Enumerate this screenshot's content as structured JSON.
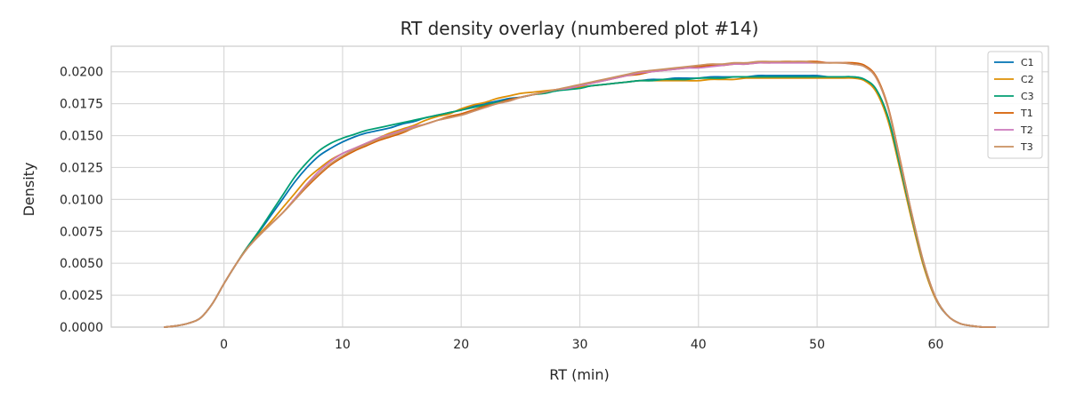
{
  "chart_data": {
    "type": "line",
    "title": "RT density overlay (numbered plot #14)",
    "xlabel": "RT (min)",
    "ylabel": "Density",
    "xlim": [
      -9.5,
      69.5
    ],
    "ylim": [
      0,
      0.022
    ],
    "xticks": [
      0,
      10,
      20,
      30,
      40,
      50,
      60
    ],
    "xtick_labels": [
      "0",
      "10",
      "20",
      "30",
      "40",
      "50",
      "60"
    ],
    "yticks": [
      0,
      0.0025,
      0.005,
      0.0075,
      0.01,
      0.0125,
      0.015,
      0.0175,
      0.02
    ],
    "ytick_labels": [
      "0.0000",
      "0.0025",
      "0.0050",
      "0.0075",
      "0.0100",
      "0.0125",
      "0.0150",
      "0.0175",
      "0.0200"
    ],
    "grid": true,
    "legend_position": "top-right",
    "x": [
      -5,
      -4,
      -3,
      -2,
      -1,
      0,
      1,
      2,
      3,
      4,
      5,
      6,
      7,
      8,
      9,
      10,
      11,
      12,
      13,
      14,
      15,
      16,
      17,
      18,
      19,
      20,
      21,
      22,
      23,
      24,
      25,
      26,
      27,
      28,
      29,
      30,
      31,
      32,
      33,
      34,
      35,
      36,
      37,
      38,
      39,
      40,
      41,
      42,
      43,
      44,
      45,
      46,
      47,
      48,
      49,
      50,
      51,
      52,
      53,
      54,
      55,
      56,
      57,
      58,
      59,
      60,
      61,
      62,
      63,
      64,
      65
    ],
    "series": [
      {
        "name": "C1",
        "color": "#0173b2",
        "values": [
          0.0,
          0.0001,
          0.0003,
          0.0007,
          0.0018,
          0.0034,
          0.0049,
          0.0063,
          0.0075,
          0.0088,
          0.0101,
          0.0114,
          0.0125,
          0.0134,
          0.014,
          0.0145,
          0.0149,
          0.0152,
          0.0154,
          0.0156,
          0.0159,
          0.0161,
          0.0164,
          0.0166,
          0.0168,
          0.017,
          0.0173,
          0.0175,
          0.0177,
          0.0179,
          0.018,
          0.0182,
          0.0184,
          0.0185,
          0.0187,
          0.0188,
          0.0189,
          0.019,
          0.0191,
          0.0192,
          0.0193,
          0.0194,
          0.0194,
          0.0195,
          0.0195,
          0.0195,
          0.0196,
          0.0196,
          0.0196,
          0.0196,
          0.0197,
          0.0197,
          0.0197,
          0.0197,
          0.0197,
          0.0197,
          0.0196,
          0.0196,
          0.0196,
          0.0194,
          0.0185,
          0.0163,
          0.0125,
          0.0085,
          0.0048,
          0.0022,
          0.0009,
          0.0003,
          0.0001,
          0.0,
          0.0
        ]
      },
      {
        "name": "C2",
        "color": "#de8f05",
        "values": [
          0.0,
          0.0001,
          0.0003,
          0.0007,
          0.0018,
          0.0034,
          0.0049,
          0.0063,
          0.0073,
          0.0083,
          0.0094,
          0.0105,
          0.0116,
          0.0124,
          0.0131,
          0.0136,
          0.014,
          0.0144,
          0.0148,
          0.0152,
          0.0155,
          0.0158,
          0.0162,
          0.0165,
          0.0167,
          0.0171,
          0.0174,
          0.0176,
          0.0179,
          0.0181,
          0.0183,
          0.0184,
          0.0185,
          0.0186,
          0.0187,
          0.0188,
          0.0189,
          0.019,
          0.0191,
          0.0192,
          0.0193,
          0.0193,
          0.0193,
          0.0193,
          0.0193,
          0.0193,
          0.0194,
          0.0194,
          0.0194,
          0.0195,
          0.0195,
          0.0195,
          0.0195,
          0.0195,
          0.0195,
          0.0195,
          0.0195,
          0.0195,
          0.0195,
          0.0193,
          0.0184,
          0.0161,
          0.0123,
          0.0083,
          0.0047,
          0.0022,
          0.0009,
          0.0003,
          0.0001,
          0.0,
          0.0
        ]
      },
      {
        "name": "C3",
        "color": "#029e73",
        "values": [
          0.0,
          0.0001,
          0.0003,
          0.0007,
          0.0018,
          0.0034,
          0.0049,
          0.0063,
          0.0076,
          0.009,
          0.0104,
          0.0118,
          0.0129,
          0.0138,
          0.0144,
          0.0148,
          0.0151,
          0.0154,
          0.0156,
          0.0158,
          0.016,
          0.0162,
          0.0164,
          0.0166,
          0.0168,
          0.017,
          0.0172,
          0.0174,
          0.0176,
          0.0178,
          0.018,
          0.0182,
          0.0183,
          0.0185,
          0.0186,
          0.0187,
          0.0189,
          0.019,
          0.0191,
          0.0192,
          0.0193,
          0.0193,
          0.0194,
          0.0194,
          0.0194,
          0.0195,
          0.0195,
          0.0195,
          0.0196,
          0.0196,
          0.0196,
          0.0196,
          0.0196,
          0.0196,
          0.0196,
          0.0196,
          0.0196,
          0.0196,
          0.0196,
          0.0194,
          0.0186,
          0.0164,
          0.0126,
          0.0086,
          0.0049,
          0.0023,
          0.0009,
          0.0003,
          0.0001,
          0.0,
          0.0
        ]
      },
      {
        "name": "T1",
        "color": "#d55e00",
        "values": [
          0.0,
          0.0001,
          0.0003,
          0.0007,
          0.0018,
          0.0034,
          0.0049,
          0.0062,
          0.0072,
          0.0081,
          0.009,
          0.01,
          0.011,
          0.0119,
          0.0127,
          0.0133,
          0.0138,
          0.0142,
          0.0146,
          0.0149,
          0.0152,
          0.0156,
          0.0159,
          0.0162,
          0.0165,
          0.0167,
          0.017,
          0.0173,
          0.0175,
          0.0178,
          0.018,
          0.0182,
          0.0184,
          0.0186,
          0.0187,
          0.0189,
          0.0191,
          0.0193,
          0.0195,
          0.0197,
          0.0198,
          0.02,
          0.0201,
          0.0202,
          0.0203,
          0.0204,
          0.0205,
          0.0205,
          0.0206,
          0.0206,
          0.0207,
          0.0207,
          0.0208,
          0.0208,
          0.0208,
          0.0208,
          0.0207,
          0.0207,
          0.0207,
          0.0205,
          0.0196,
          0.0172,
          0.0131,
          0.0088,
          0.005,
          0.0023,
          0.0009,
          0.0003,
          0.0001,
          0.0,
          0.0
        ]
      },
      {
        "name": "T2",
        "color": "#cc78bc",
        "values": [
          0.0,
          0.0001,
          0.0003,
          0.0007,
          0.0018,
          0.0034,
          0.0049,
          0.0062,
          0.0072,
          0.0081,
          0.009,
          0.0101,
          0.0112,
          0.0122,
          0.013,
          0.0136,
          0.014,
          0.0144,
          0.0148,
          0.0151,
          0.0154,
          0.0157,
          0.0159,
          0.0162,
          0.0164,
          0.0166,
          0.0169,
          0.0172,
          0.0175,
          0.0177,
          0.018,
          0.0182,
          0.0184,
          0.0186,
          0.0187,
          0.0189,
          0.0191,
          0.0193,
          0.0195,
          0.0197,
          0.0199,
          0.02,
          0.0201,
          0.0202,
          0.0203,
          0.0203,
          0.0204,
          0.0205,
          0.0206,
          0.0206,
          0.0207,
          0.0207,
          0.0207,
          0.0207,
          0.0207,
          0.0207,
          0.0207,
          0.0207,
          0.0206,
          0.0204,
          0.0195,
          0.0171,
          0.013,
          0.0088,
          0.005,
          0.0023,
          0.0009,
          0.0003,
          0.0001,
          0.0,
          0.0
        ]
      },
      {
        "name": "T3",
        "color": "#ca9161",
        "values": [
          0.0,
          0.0001,
          0.0003,
          0.0007,
          0.0018,
          0.0034,
          0.0049,
          0.0062,
          0.0072,
          0.0081,
          0.009,
          0.01,
          0.0111,
          0.012,
          0.0128,
          0.0134,
          0.0139,
          0.0143,
          0.0147,
          0.015,
          0.0153,
          0.0156,
          0.0159,
          0.0162,
          0.0164,
          0.0166,
          0.0169,
          0.0172,
          0.0175,
          0.0177,
          0.018,
          0.0182,
          0.0184,
          0.0186,
          0.0188,
          0.019,
          0.0192,
          0.0194,
          0.0196,
          0.0198,
          0.02,
          0.0201,
          0.0202,
          0.0203,
          0.0204,
          0.0205,
          0.0206,
          0.0206,
          0.0207,
          0.0207,
          0.0208,
          0.0208,
          0.0208,
          0.0208,
          0.0208,
          0.0207,
          0.0207,
          0.0207,
          0.0206,
          0.0204,
          0.0195,
          0.0171,
          0.013,
          0.0088,
          0.005,
          0.0023,
          0.0009,
          0.0003,
          0.0001,
          0.0,
          0.0
        ]
      }
    ]
  }
}
